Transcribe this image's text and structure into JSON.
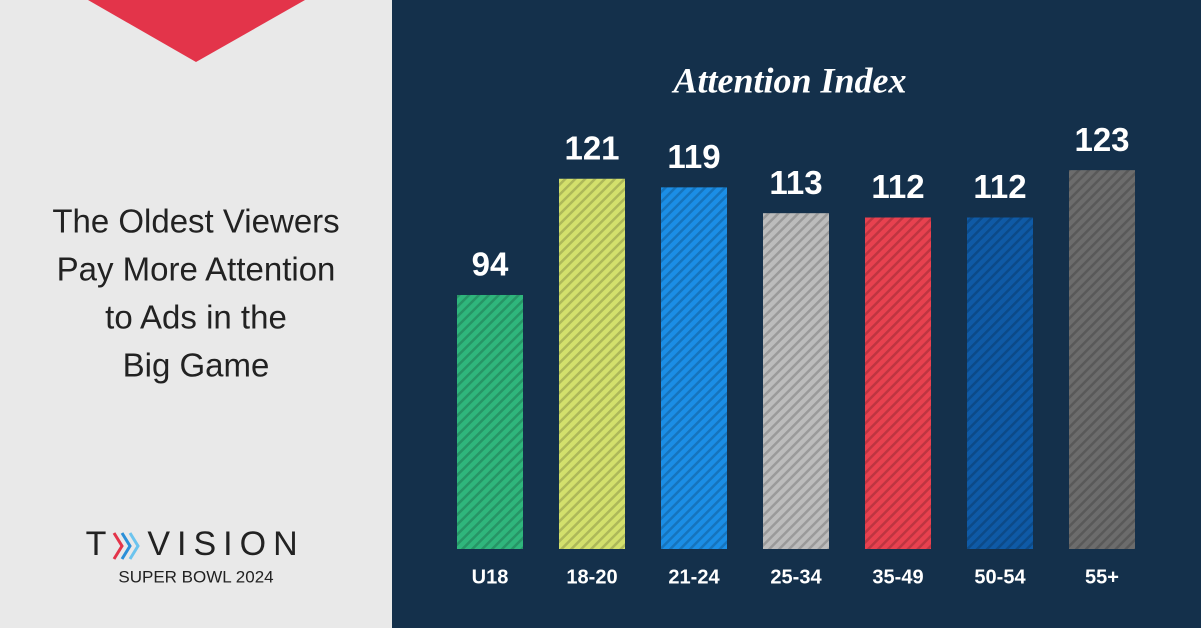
{
  "headline": [
    "The Oldest Viewers",
    "Pay More Attention",
    "to Ads in the",
    "Big Game"
  ],
  "logo": {
    "left": "T",
    "right": "VISION",
    "caption": "SUPER BOWL 2024"
  },
  "chart_data": {
    "type": "bar",
    "title": "Attention Index",
    "categories": [
      "U18",
      "18-20",
      "21-24",
      "25-34",
      "35-49",
      "50-54",
      "55+"
    ],
    "values": [
      94,
      121,
      119,
      113,
      112,
      112,
      123
    ],
    "colors": [
      "#2fb67c",
      "#d3e06c",
      "#1b8ee6",
      "#bcbcbc",
      "#e8414f",
      "#0f5aa6",
      "#6c6c6c"
    ],
    "ylim": [
      35,
      130
    ]
  }
}
